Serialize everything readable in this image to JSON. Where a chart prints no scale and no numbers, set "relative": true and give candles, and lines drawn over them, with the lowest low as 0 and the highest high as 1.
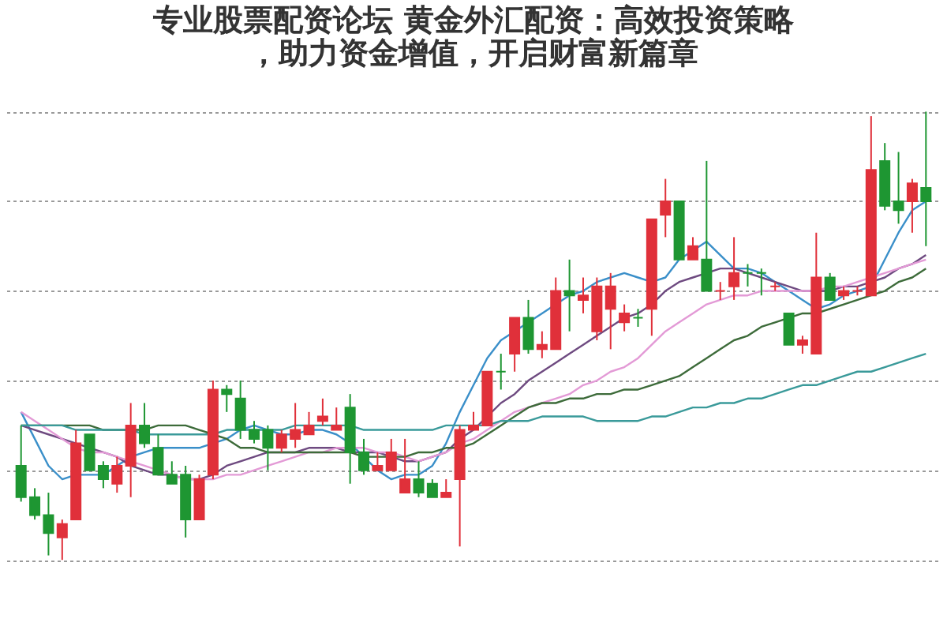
{
  "chart_data": {
    "type": "candlestick",
    "title": "专业股票配资论坛 黄金外汇配资：高效投资策略，助力资金增值，开启财富新篇章",
    "relative": true,
    "grid": "y",
    "categories": [
      null,
      null,
      null,
      null,
      null,
      null,
      null,
      null,
      null,
      null,
      null,
      null,
      null,
      null,
      null,
      null,
      null,
      null,
      null,
      null,
      null,
      null,
      null,
      null,
      null,
      null,
      null,
      null,
      null,
      null,
      null,
      null,
      null,
      null,
      null,
      null,
      null,
      null,
      null,
      null,
      null,
      null,
      null,
      null,
      null,
      null,
      null,
      null,
      null,
      null,
      null,
      null,
      null,
      null,
      null,
      null,
      null,
      null,
      null,
      null,
      null,
      null,
      null,
      null,
      null,
      null,
      null
    ],
    "series": [
      {
        "type": "candlestick",
        "ohlc": [
          [
            0.21,
            0.3,
            0.13,
            0.14
          ],
          [
            0.14,
            0.16,
            0.09,
            0.1
          ],
          [
            0.1,
            0.15,
            0.01,
            0.06
          ],
          [
            0.05,
            0.09,
            0,
            0.08
          ],
          [
            0.09,
            0.29,
            0.09,
            0.26
          ],
          [
            0.28,
            0.28,
            0.2,
            0.2
          ],
          [
            0.21,
            0.22,
            0.16,
            0.18
          ],
          [
            0.17,
            0.23,
            0.15,
            0.21
          ],
          [
            0.21,
            0.35,
            0.14,
            0.3
          ],
          [
            0.3,
            0.35,
            0.25,
            0.26
          ],
          [
            0.25,
            0.28,
            0.19,
            0.19
          ],
          [
            0.19,
            0.22,
            0.17,
            0.17
          ],
          [
            0.19,
            0.21,
            0.05,
            0.09
          ],
          [
            0.09,
            0.19,
            0.09,
            0.18
          ],
          [
            0.19,
            0.4,
            0.18,
            0.38
          ],
          [
            0.38,
            0.39,
            0.33,
            0.37
          ],
          [
            0.36,
            0.4,
            0.27,
            0.29
          ],
          [
            0.29,
            0.31,
            0.26,
            0.27
          ],
          [
            0.29,
            0.3,
            0.2,
            0.25
          ],
          [
            0.25,
            0.29,
            0.24,
            0.28
          ],
          [
            0.27,
            0.35,
            0.25,
            0.29
          ],
          [
            0.28,
            0.33,
            0.28,
            0.3
          ],
          [
            0.31,
            0.36,
            0.3,
            0.32
          ],
          [
            0.29,
            0.34,
            0.29,
            0.3
          ],
          [
            0.34,
            0.37,
            0.17,
            0.24
          ],
          [
            0.24,
            0.27,
            0.19,
            0.2
          ],
          [
            0.2,
            0.24,
            0.2,
            0.21
          ],
          [
            0.2,
            0.27,
            0.2,
            0.24
          ],
          [
            0.15,
            0.27,
            0.15,
            0.18
          ],
          [
            0.18,
            0.22,
            0.14,
            0.15
          ],
          [
            0.17,
            0.18,
            0.14,
            0.14
          ],
          [
            0.14,
            0.18,
            0.14,
            0.15
          ],
          [
            0.18,
            0.3,
            0.03,
            0.29
          ],
          [
            0.29,
            0.33,
            0.29,
            0.3
          ],
          [
            0.3,
            0.42,
            0.3,
            0.42
          ],
          [
            0.42,
            0.46,
            0.38,
            0.42
          ],
          [
            0.46,
            0.54,
            0.42,
            0.54
          ],
          [
            0.54,
            0.58,
            0.46,
            0.47
          ],
          [
            0.47,
            0.51,
            0.45,
            0.48
          ],
          [
            0.47,
            0.63,
            0.47,
            0.6
          ],
          [
            0.6,
            0.67,
            0.51,
            0.59
          ],
          [
            0.58,
            0.63,
            0.55,
            0.59
          ],
          [
            0.51,
            0.63,
            0.49,
            0.61
          ],
          [
            0.56,
            0.64,
            0.47,
            0.61
          ],
          [
            0.53,
            0.57,
            0.51,
            0.55
          ],
          [
            0.54,
            0.56,
            0.52,
            0.54
          ],
          [
            0.56,
            0.76,
            0.5,
            0.76
          ],
          [
            0.77,
            0.85,
            0.72,
            0.8
          ],
          [
            0.8,
            0.8,
            0.67,
            0.67
          ],
          [
            0.67,
            0.72,
            0.67,
            0.7
          ],
          [
            0.67,
            0.89,
            0.6,
            0.6
          ],
          [
            0.6,
            0.62,
            0.58,
            0.6
          ],
          [
            0.61,
            0.72,
            0.58,
            0.64
          ],
          [
            0.64,
            0.66,
            0.61,
            0.64
          ],
          [
            0.64,
            0.65,
            0.59,
            0.64
          ],
          [
            0.61,
            0.62,
            0.6,
            0.61
          ],
          [
            0.55,
            0.55,
            0.48,
            0.48
          ],
          [
            0.48,
            0.5,
            0.46,
            0.49
          ],
          [
            0.46,
            0.73,
            0.46,
            0.63
          ],
          [
            0.63,
            0.64,
            0.58,
            0.58
          ],
          [
            0.59,
            0.61,
            0.58,
            0.6
          ],
          [
            0.6,
            0.61,
            0.59,
            0.6
          ],
          [
            0.59,
            0.99,
            0.59,
            0.87
          ],
          [
            0.89,
            0.93,
            0.78,
            0.79
          ],
          [
            0.8,
            0.91,
            0.75,
            0.78
          ],
          [
            0.8,
            0.85,
            0.73,
            0.84
          ],
          [
            0.83,
            1.0,
            0.7,
            0.8
          ]
        ],
        "colors": [
          "#1e9632",
          "#1e9632",
          "#1e9632",
          "#e0303a",
          "#e0303a",
          "#1e9632",
          "#1e9632",
          "#e0303a",
          "#e0303a",
          "#1e9632",
          "#1e9632",
          "#1e9632",
          "#1e9632",
          "#e0303a",
          "#e0303a",
          "#1e9632",
          "#1e9632",
          "#1e9632",
          "#1e9632",
          "#e0303a",
          "#e0303a",
          "#e0303a",
          "#e0303a",
          "#e0303a",
          "#1e9632",
          "#1e9632",
          "#e0303a",
          "#e0303a",
          "#e0303a",
          "#1e9632",
          "#1e9632",
          "#e0303a",
          "#e0303a",
          "#e0303a",
          "#e0303a",
          "#1e9632",
          "#e0303a",
          "#1e9632",
          "#e0303a",
          "#e0303a",
          "#1e9632",
          "#e0303a",
          "#e0303a",
          "#e0303a",
          "#e0303a",
          "#1e9632",
          "#e0303a",
          "#e0303a",
          "#1e9632",
          "#e0303a",
          "#1e9632",
          "#e0303a",
          "#e0303a",
          "#1e9632",
          "#1e9632",
          "#e0303a",
          "#1e9632",
          "#e0303a",
          "#e0303a",
          "#1e9632",
          "#e0303a",
          "#e0303a",
          "#e0303a",
          "#1e9632",
          "#1e9632",
          "#e0303a",
          "#1e9632"
        ]
      },
      {
        "type": "line",
        "color": "#3a8fc9",
        "values": [
          0.33,
          0.27,
          0.21,
          0.18,
          0.19,
          0.19,
          0.19,
          0.21,
          0.23,
          0.24,
          0.25,
          0.25,
          0.25,
          0.25,
          0.26,
          0.27,
          0.29,
          0.3,
          0.29,
          0.28,
          0.28,
          0.29,
          0.29,
          0.28,
          0.26,
          0.23,
          0.2,
          0.18,
          0.19,
          0.19,
          0.21,
          0.26,
          0.33,
          0.39,
          0.45,
          0.49,
          0.51,
          0.53,
          0.55,
          0.57,
          0.59,
          0.6,
          0.62,
          0.63,
          0.64,
          0.63,
          0.62,
          0.63,
          0.67,
          0.69,
          0.71,
          0.68,
          0.65,
          0.65,
          0.64,
          0.62,
          0.6,
          0.58,
          0.56,
          0.57,
          0.59,
          0.6,
          0.61,
          0.67,
          0.73,
          0.78,
          0.8
        ]
      },
      {
        "type": "line",
        "color": "#6e4a80",
        "values": [
          0.3,
          0.29,
          0.28,
          0.27,
          0.26,
          0.25,
          0.24,
          0.23,
          0.21,
          0.2,
          0.19,
          0.19,
          0.18,
          0.18,
          0.19,
          0.21,
          0.22,
          0.23,
          0.24,
          0.24,
          0.24,
          0.25,
          0.25,
          0.25,
          0.24,
          0.24,
          0.24,
          0.23,
          0.22,
          0.22,
          0.23,
          0.24,
          0.27,
          0.29,
          0.32,
          0.35,
          0.37,
          0.4,
          0.42,
          0.44,
          0.46,
          0.48,
          0.5,
          0.52,
          0.54,
          0.55,
          0.57,
          0.6,
          0.62,
          0.63,
          0.64,
          0.65,
          0.65,
          0.64,
          0.63,
          0.62,
          0.61,
          0.6,
          0.6,
          0.6,
          0.61,
          0.61,
          0.62,
          0.63,
          0.65,
          0.66,
          0.68
        ]
      },
      {
        "type": "line",
        "color": "#e39ad6",
        "values": [
          0.33,
          0.31,
          0.29,
          0.27,
          0.25,
          0.24,
          0.24,
          0.23,
          0.22,
          0.21,
          0.2,
          0.19,
          0.18,
          0.18,
          0.18,
          0.19,
          0.19,
          0.2,
          0.21,
          0.22,
          0.23,
          0.24,
          0.24,
          0.25,
          0.25,
          0.25,
          0.24,
          0.24,
          0.23,
          0.22,
          0.23,
          0.24,
          0.26,
          0.27,
          0.29,
          0.31,
          0.33,
          0.34,
          0.35,
          0.36,
          0.37,
          0.39,
          0.4,
          0.42,
          0.43,
          0.45,
          0.48,
          0.51,
          0.53,
          0.55,
          0.57,
          0.58,
          0.59,
          0.59,
          0.6,
          0.6,
          0.6,
          0.6,
          0.6,
          0.61,
          0.61,
          0.62,
          0.63,
          0.64,
          0.65,
          0.66,
          0.67
        ]
      },
      {
        "type": "line",
        "color": "#3d6b3a",
        "values": [
          0.3,
          0.3,
          0.3,
          0.3,
          0.3,
          0.3,
          0.29,
          0.29,
          0.29,
          0.29,
          0.3,
          0.3,
          0.3,
          0.29,
          0.28,
          0.27,
          0.25,
          0.25,
          0.24,
          0.24,
          0.24,
          0.24,
          0.24,
          0.24,
          0.24,
          0.23,
          0.23,
          0.23,
          0.23,
          0.24,
          0.24,
          0.25,
          0.25,
          0.26,
          0.28,
          0.3,
          0.32,
          0.34,
          0.35,
          0.35,
          0.36,
          0.36,
          0.37,
          0.37,
          0.38,
          0.38,
          0.39,
          0.4,
          0.41,
          0.43,
          0.45,
          0.47,
          0.49,
          0.5,
          0.52,
          0.53,
          0.54,
          0.55,
          0.55,
          0.56,
          0.57,
          0.58,
          0.59,
          0.6,
          0.62,
          0.63,
          0.65
        ]
      },
      {
        "type": "line",
        "color": "#3a9a9a",
        "values": [
          0.3,
          0.3,
          0.3,
          0.3,
          0.29,
          0.29,
          0.29,
          0.29,
          0.29,
          0.28,
          0.28,
          0.28,
          0.28,
          0.28,
          0.28,
          0.29,
          0.29,
          0.29,
          0.29,
          0.29,
          0.3,
          0.3,
          0.3,
          0.3,
          0.3,
          0.29,
          0.29,
          0.29,
          0.29,
          0.29,
          0.29,
          0.3,
          0.3,
          0.3,
          0.3,
          0.31,
          0.31,
          0.31,
          0.32,
          0.32,
          0.32,
          0.32,
          0.31,
          0.31,
          0.31,
          0.31,
          0.32,
          0.32,
          0.33,
          0.34,
          0.34,
          0.35,
          0.35,
          0.36,
          0.36,
          0.37,
          0.38,
          0.39,
          0.39,
          0.4,
          0.41,
          0.42,
          0.42,
          0.43,
          0.44,
          0.45,
          0.46
        ]
      }
    ]
  }
}
